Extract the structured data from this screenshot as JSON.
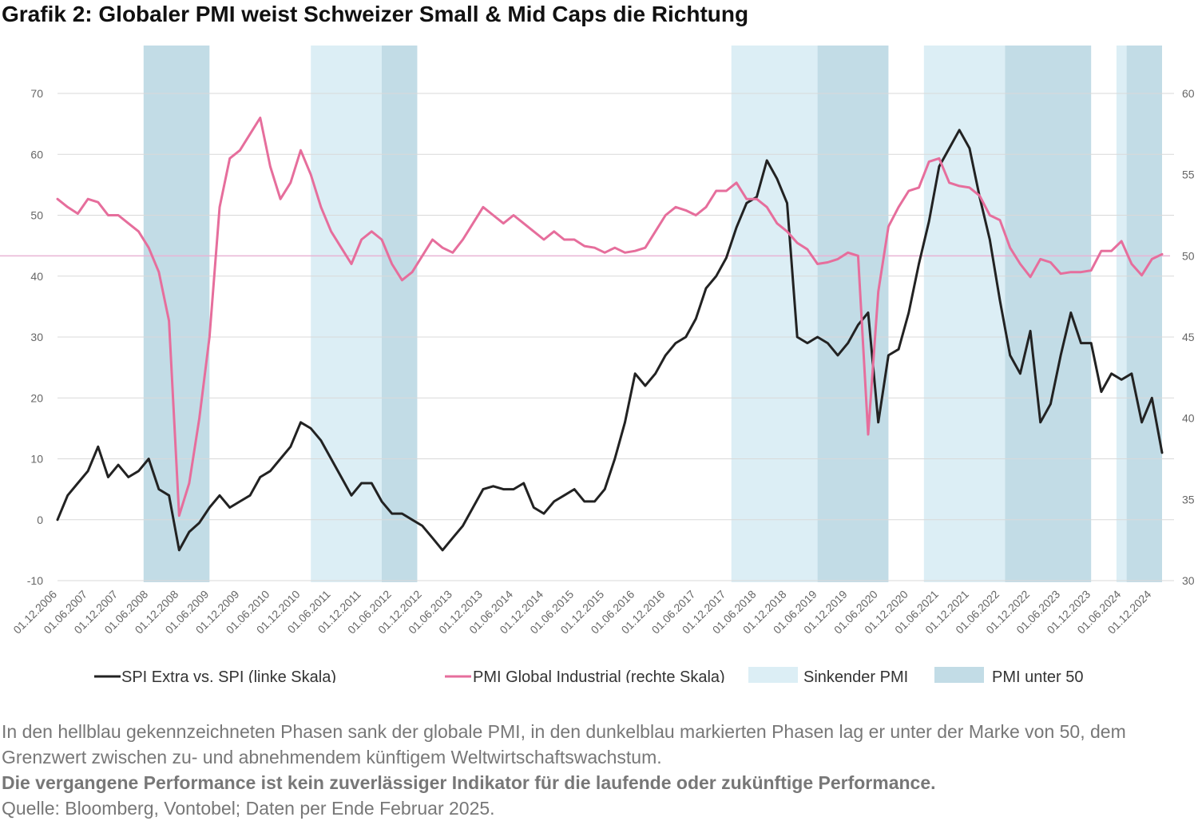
{
  "title": "Grafik 2: Globaler PMI weist Schweizer Small & Mid Caps die Richtung",
  "footnote": {
    "line1": "In den hellblau gekennzeichneten Phasen sank der globale PMI, in den dunkelblau markierten Phasen lag er unter der Marke von 50, dem Grenzwert zwischen zu- und abnehmendem künftigem Weltwirtschaftswachstum.",
    "line2": "Die vergangene Performance ist kein zuverlässiger Indikator für die laufende oder zukünftige Performance.",
    "line3": "Quelle: Bloomberg, Vontobel; Daten per Ende Februar 2025."
  },
  "chart_data": {
    "type": "line",
    "x_start": "2006-12",
    "x_end": "2025-02",
    "x_tick_labels": [
      "01.12.2006",
      "01.06.2007",
      "01.12.2007",
      "01.06.2008",
      "01.12.2008",
      "01.06.2009",
      "01.12.2009",
      "01.06.2010",
      "01.12.2010",
      "01.06.2011",
      "01.12.2011",
      "01.06.2012",
      "01.12.2012",
      "01.06.2013",
      "01.12.2013",
      "01.06.2014",
      "01.12.2014",
      "01.06.2015",
      "01.12.2015",
      "01.06.2016",
      "01.12.2016",
      "01.06.2017",
      "01.12.2017",
      "01.06.2018",
      "01.12.2018",
      "01.06.2019",
      "01.12.2019",
      "01.06.2020",
      "01.12.2020",
      "01.06.2021",
      "01.12.2021",
      "01.06.2022",
      "01.12.2022",
      "01.06.2023",
      "01.12.2023",
      "01.06.2024",
      "01.12.2024"
    ],
    "y_left": {
      "min": -10,
      "max": 70,
      "ticks": [
        -10,
        0,
        10,
        20,
        30,
        40,
        50,
        60,
        70
      ]
    },
    "y_right": {
      "min": 30,
      "max": 60,
      "ticks": [
        30,
        35,
        40,
        45,
        50,
        55,
        60
      ]
    },
    "reference_line": {
      "axis": "right",
      "value": 50,
      "color": "#e8b4d4"
    },
    "shaded_periods": [
      {
        "type": "light",
        "start": "2008-05",
        "end": "2008-05"
      },
      {
        "type": "dark",
        "start": "2008-05",
        "end": "2009-06"
      },
      {
        "type": "light",
        "start": "2011-02",
        "end": "2012-04"
      },
      {
        "type": "dark",
        "start": "2012-04",
        "end": "2012-11"
      },
      {
        "type": "light",
        "start": "2018-01",
        "end": "2019-06"
      },
      {
        "type": "dark",
        "start": "2019-06",
        "end": "2020-08"
      },
      {
        "type": "light",
        "start": "2021-03",
        "end": "2022-07"
      },
      {
        "type": "dark",
        "start": "2022-07",
        "end": "2023-12"
      },
      {
        "type": "light",
        "start": "2024-05",
        "end": "2024-07"
      },
      {
        "type": "dark",
        "start": "2024-07",
        "end": "2025-02"
      }
    ],
    "series": [
      {
        "name": "SPI Extra vs. SPI (linke Skala)",
        "axis": "left",
        "color": "#222222",
        "points": [
          [
            "2006-12",
            0
          ],
          [
            "2007-02",
            4
          ],
          [
            "2007-04",
            6
          ],
          [
            "2007-06",
            8
          ],
          [
            "2007-08",
            12
          ],
          [
            "2007-10",
            7
          ],
          [
            "2007-12",
            9
          ],
          [
            "2008-02",
            7
          ],
          [
            "2008-04",
            8
          ],
          [
            "2008-06",
            10
          ],
          [
            "2008-08",
            5
          ],
          [
            "2008-10",
            4
          ],
          [
            "2008-12",
            -5
          ],
          [
            "2009-02",
            -2
          ],
          [
            "2009-04",
            -0.5
          ],
          [
            "2009-06",
            2
          ],
          [
            "2009-08",
            4
          ],
          [
            "2009-10",
            2
          ],
          [
            "2009-12",
            3
          ],
          [
            "2010-02",
            4
          ],
          [
            "2010-04",
            7
          ],
          [
            "2010-06",
            8
          ],
          [
            "2010-08",
            10
          ],
          [
            "2010-10",
            12
          ],
          [
            "2010-12",
            16
          ],
          [
            "2011-02",
            15
          ],
          [
            "2011-04",
            13
          ],
          [
            "2011-06",
            10
          ],
          [
            "2011-08",
            7
          ],
          [
            "2011-10",
            4
          ],
          [
            "2011-12",
            6
          ],
          [
            "2012-02",
            6
          ],
          [
            "2012-04",
            3
          ],
          [
            "2012-06",
            1
          ],
          [
            "2012-08",
            1
          ],
          [
            "2012-10",
            0
          ],
          [
            "2012-12",
            -1
          ],
          [
            "2013-02",
            -3
          ],
          [
            "2013-04",
            -5
          ],
          [
            "2013-06",
            -3
          ],
          [
            "2013-08",
            -1
          ],
          [
            "2013-10",
            2
          ],
          [
            "2013-12",
            5
          ],
          [
            "2014-02",
            5.5
          ],
          [
            "2014-04",
            5
          ],
          [
            "2014-06",
            5
          ],
          [
            "2014-08",
            6
          ],
          [
            "2014-10",
            2
          ],
          [
            "2014-12",
            1
          ],
          [
            "2015-02",
            3
          ],
          [
            "2015-04",
            4
          ],
          [
            "2015-06",
            5
          ],
          [
            "2015-08",
            3
          ],
          [
            "2015-10",
            3
          ],
          [
            "2015-12",
            5
          ],
          [
            "2016-02",
            10
          ],
          [
            "2016-04",
            16
          ],
          [
            "2016-06",
            24
          ],
          [
            "2016-08",
            22
          ],
          [
            "2016-10",
            24
          ],
          [
            "2016-12",
            27
          ],
          [
            "2017-02",
            29
          ],
          [
            "2017-04",
            30
          ],
          [
            "2017-06",
            33
          ],
          [
            "2017-08",
            38
          ],
          [
            "2017-10",
            40
          ],
          [
            "2017-12",
            43
          ],
          [
            "2018-02",
            48
          ],
          [
            "2018-04",
            52
          ],
          [
            "2018-06",
            53
          ],
          [
            "2018-08",
            59
          ],
          [
            "2018-10",
            56
          ],
          [
            "2018-12",
            52
          ],
          [
            "2019-02",
            30
          ],
          [
            "2019-04",
            29
          ],
          [
            "2019-06",
            30
          ],
          [
            "2019-08",
            29
          ],
          [
            "2019-10",
            27
          ],
          [
            "2019-12",
            29
          ],
          [
            "2020-02",
            32
          ],
          [
            "2020-04",
            34
          ],
          [
            "2020-06",
            16
          ],
          [
            "2020-08",
            27
          ],
          [
            "2020-10",
            28
          ],
          [
            "2020-12",
            34
          ],
          [
            "2021-02",
            42
          ],
          [
            "2021-04",
            49
          ],
          [
            "2021-06",
            58
          ],
          [
            "2021-08",
            61
          ],
          [
            "2021-10",
            64
          ],
          [
            "2021-12",
            61
          ],
          [
            "2022-02",
            53
          ],
          [
            "2022-04",
            46
          ],
          [
            "2022-06",
            36
          ],
          [
            "2022-08",
            27
          ],
          [
            "2022-10",
            24
          ],
          [
            "2022-12",
            31
          ],
          [
            "2023-02",
            16
          ],
          [
            "2023-04",
            19
          ],
          [
            "2023-06",
            27
          ],
          [
            "2023-08",
            34
          ],
          [
            "2023-10",
            29
          ],
          [
            "2023-12",
            29
          ],
          [
            "2024-02",
            21
          ],
          [
            "2024-04",
            24
          ],
          [
            "2024-06",
            23
          ],
          [
            "2024-08",
            24
          ],
          [
            "2024-10",
            16
          ],
          [
            "2024-12",
            20
          ],
          [
            "2025-02",
            11
          ]
        ]
      },
      {
        "name": "PMI Global Industrial (rechte Skala)",
        "axis": "right",
        "color": "#e66e9c",
        "points": [
          [
            "2006-12",
            53.5
          ],
          [
            "2007-02",
            53
          ],
          [
            "2007-04",
            52.6
          ],
          [
            "2007-06",
            53.5
          ],
          [
            "2007-08",
            53.3
          ],
          [
            "2007-10",
            52.5
          ],
          [
            "2007-12",
            52.5
          ],
          [
            "2008-02",
            52
          ],
          [
            "2008-04",
            51.5
          ],
          [
            "2008-06",
            50.5
          ],
          [
            "2008-08",
            49
          ],
          [
            "2008-10",
            46
          ],
          [
            "2008-12",
            34
          ],
          [
            "2009-02",
            36
          ],
          [
            "2009-04",
            40
          ],
          [
            "2009-06",
            45
          ],
          [
            "2009-08",
            53
          ],
          [
            "2009-10",
            56
          ],
          [
            "2009-12",
            56.5
          ],
          [
            "2010-02",
            57.5
          ],
          [
            "2010-04",
            58.5
          ],
          [
            "2010-06",
            55.5
          ],
          [
            "2010-08",
            53.5
          ],
          [
            "2010-10",
            54.5
          ],
          [
            "2010-12",
            56.5
          ],
          [
            "2011-02",
            55
          ],
          [
            "2011-04",
            53
          ],
          [
            "2011-06",
            51.5
          ],
          [
            "2011-08",
            50.5
          ],
          [
            "2011-10",
            49.5
          ],
          [
            "2011-12",
            51
          ],
          [
            "2012-02",
            51.5
          ],
          [
            "2012-04",
            51
          ],
          [
            "2012-06",
            49.5
          ],
          [
            "2012-08",
            48.5
          ],
          [
            "2012-10",
            49
          ],
          [
            "2012-12",
            50
          ],
          [
            "2013-02",
            51
          ],
          [
            "2013-04",
            50.5
          ],
          [
            "2013-06",
            50.2
          ],
          [
            "2013-08",
            51
          ],
          [
            "2013-10",
            52
          ],
          [
            "2013-12",
            53
          ],
          [
            "2014-02",
            52.5
          ],
          [
            "2014-04",
            52
          ],
          [
            "2014-06",
            52.5
          ],
          [
            "2014-08",
            52
          ],
          [
            "2014-10",
            51.5
          ],
          [
            "2014-12",
            51
          ],
          [
            "2015-02",
            51.5
          ],
          [
            "2015-04",
            51
          ],
          [
            "2015-06",
            51
          ],
          [
            "2015-08",
            50.6
          ],
          [
            "2015-10",
            50.5
          ],
          [
            "2015-12",
            50.2
          ],
          [
            "2016-02",
            50.5
          ],
          [
            "2016-04",
            50.2
          ],
          [
            "2016-06",
            50.3
          ],
          [
            "2016-08",
            50.5
          ],
          [
            "2016-10",
            51.5
          ],
          [
            "2016-12",
            52.5
          ],
          [
            "2017-02",
            53
          ],
          [
            "2017-04",
            52.8
          ],
          [
            "2017-06",
            52.5
          ],
          [
            "2017-08",
            53
          ],
          [
            "2017-10",
            54
          ],
          [
            "2017-12",
            54
          ],
          [
            "2018-02",
            54.5
          ],
          [
            "2018-04",
            53.5
          ],
          [
            "2018-06",
            53.5
          ],
          [
            "2018-08",
            53
          ],
          [
            "2018-10",
            52
          ],
          [
            "2018-12",
            51.5
          ],
          [
            "2019-02",
            50.8
          ],
          [
            "2019-04",
            50.4
          ],
          [
            "2019-06",
            49.5
          ],
          [
            "2019-08",
            49.6
          ],
          [
            "2019-10",
            49.8
          ],
          [
            "2019-12",
            50.2
          ],
          [
            "2020-02",
            50
          ],
          [
            "2020-04",
            39
          ],
          [
            "2020-06",
            47.8
          ],
          [
            "2020-08",
            51.8
          ],
          [
            "2020-10",
            53
          ],
          [
            "2020-12",
            54
          ],
          [
            "2021-02",
            54.2
          ],
          [
            "2021-04",
            55.8
          ],
          [
            "2021-06",
            56
          ],
          [
            "2021-08",
            54.5
          ],
          [
            "2021-10",
            54.3
          ],
          [
            "2021-12",
            54.2
          ],
          [
            "2022-02",
            53.7
          ],
          [
            "2022-04",
            52.5
          ],
          [
            "2022-06",
            52.2
          ],
          [
            "2022-08",
            50.5
          ],
          [
            "2022-10",
            49.5
          ],
          [
            "2022-12",
            48.7
          ],
          [
            "2023-02",
            49.8
          ],
          [
            "2023-04",
            49.6
          ],
          [
            "2023-06",
            48.9
          ],
          [
            "2023-08",
            49
          ],
          [
            "2023-10",
            49
          ],
          [
            "2023-12",
            49.1
          ],
          [
            "2024-02",
            50.3
          ],
          [
            "2024-04",
            50.3
          ],
          [
            "2024-06",
            50.9
          ],
          [
            "2024-08",
            49.5
          ],
          [
            "2024-10",
            48.8
          ],
          [
            "2024-12",
            49.8
          ],
          [
            "2025-02",
            50.1
          ]
        ]
      }
    ],
    "legend": [
      {
        "label": "SPI Extra vs. SPI (linke Skala)",
        "kind": "line",
        "color": "#222222"
      },
      {
        "label": "PMI Global Industrial (rechte Skala)",
        "kind": "line",
        "color": "#e66e9c"
      },
      {
        "label": "Sinkender PMI",
        "kind": "box",
        "color": "#dceef5"
      },
      {
        "label": "PMI unter 50",
        "kind": "box",
        "color": "#c2dce6"
      }
    ],
    "legend_position": "bottom",
    "grid": true
  }
}
